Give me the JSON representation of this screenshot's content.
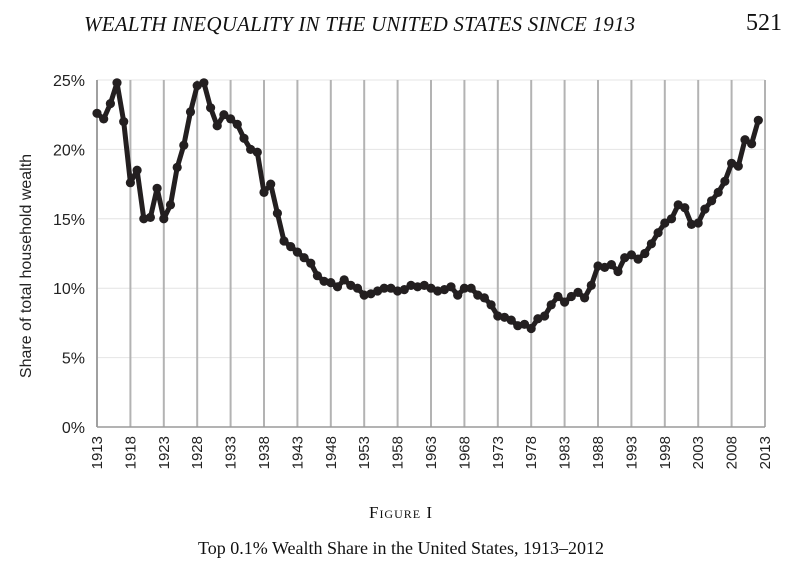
{
  "running_head": {
    "title": "WEALTH INEQUALITY IN THE UNITED STATES SINCE 1913",
    "page_number": "521"
  },
  "figure": {
    "label": "Figure I",
    "caption": "Top 0.1% Wealth Share in the United States, 1913–2012"
  },
  "chart_data": {
    "type": "line",
    "title": "",
    "xlabel": "",
    "ylabel": "Share of total household wealth",
    "xlim": [
      1913,
      2013
    ],
    "ylim": [
      0,
      25
    ],
    "y_ticks": [
      0,
      5,
      10,
      15,
      20,
      25
    ],
    "y_tick_labels": [
      "0%",
      "5%",
      "10%",
      "15%",
      "20%",
      "25%"
    ],
    "x_ticks": [
      1913,
      1918,
      1923,
      1928,
      1933,
      1938,
      1943,
      1948,
      1953,
      1958,
      1963,
      1968,
      1973,
      1978,
      1983,
      1988,
      1993,
      1998,
      2003,
      2008,
      2013
    ],
    "x_tick_labels": [
      "1913",
      "1918",
      "1923",
      "1928",
      "1933",
      "1938",
      "1943",
      "1948",
      "1953",
      "1958",
      "1963",
      "1968",
      "1973",
      "1978",
      "1983",
      "1988",
      "1993",
      "1998",
      "2003",
      "2008",
      "2013"
    ],
    "grid": "vertical",
    "line_color": "#231f20",
    "grid_color": "#b3b3b3",
    "x": [
      1913,
      1914,
      1915,
      1916,
      1917,
      1918,
      1919,
      1920,
      1921,
      1922,
      1923,
      1924,
      1925,
      1926,
      1927,
      1928,
      1929,
      1930,
      1931,
      1932,
      1933,
      1934,
      1935,
      1936,
      1937,
      1938,
      1939,
      1940,
      1941,
      1942,
      1943,
      1944,
      1945,
      1946,
      1947,
      1948,
      1949,
      1950,
      1951,
      1952,
      1953,
      1954,
      1955,
      1956,
      1957,
      1958,
      1959,
      1960,
      1961,
      1962,
      1963,
      1964,
      1965,
      1966,
      1967,
      1968,
      1969,
      1970,
      1971,
      1972,
      1973,
      1974,
      1975,
      1976,
      1977,
      1978,
      1979,
      1980,
      1981,
      1982,
      1983,
      1984,
      1985,
      1986,
      1987,
      1988,
      1989,
      1990,
      1991,
      1992,
      1993,
      1994,
      1995,
      1996,
      1997,
      1998,
      1999,
      2000,
      2001,
      2002,
      2003,
      2004,
      2005,
      2006,
      2007,
      2008,
      2009,
      2010,
      2011,
      2012
    ],
    "y": [
      22.6,
      22.2,
      23.3,
      24.8,
      22.0,
      17.6,
      18.5,
      15.0,
      15.1,
      17.2,
      15.0,
      16.0,
      18.7,
      20.3,
      22.7,
      24.6,
      24.8,
      23.0,
      21.7,
      22.5,
      22.2,
      21.8,
      20.8,
      20.0,
      19.8,
      16.9,
      17.5,
      15.4,
      13.4,
      13.0,
      12.6,
      12.2,
      11.8,
      10.9,
      10.5,
      10.4,
      10.1,
      10.6,
      10.2,
      10.0,
      9.5,
      9.6,
      9.8,
      10.0,
      10.0,
      9.8,
      9.9,
      10.2,
      10.1,
      10.2,
      10.0,
      9.8,
      9.9,
      10.1,
      9.5,
      10.0,
      10.0,
      9.5,
      9.3,
      8.8,
      8.0,
      7.9,
      7.7,
      7.3,
      7.4,
      7.1,
      7.8,
      8.0,
      8.8,
      9.4,
      9.0,
      9.4,
      9.7,
      9.3,
      10.2,
      11.6,
      11.5,
      11.7,
      11.2,
      12.2,
      12.4,
      12.1,
      12.5,
      13.2,
      14.0,
      14.7,
      15.0,
      16.0,
      15.8,
      14.6,
      14.7,
      15.7,
      16.3,
      16.9,
      17.7,
      19.0,
      18.8,
      20.7,
      20.4,
      22.1
    ]
  }
}
